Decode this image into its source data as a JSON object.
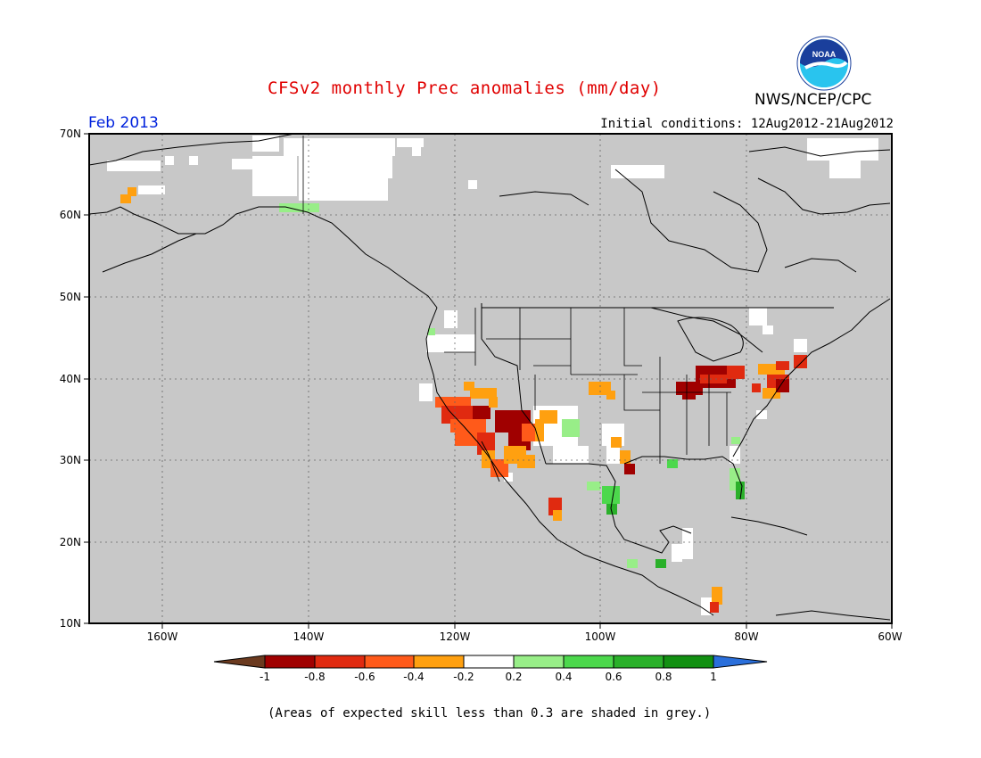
{
  "title": "CFSv2 monthly Prec anomalies (mm/day)",
  "agency": "NWS/NCEP/CPC",
  "logo": {
    "icon": "noaa-logo",
    "text": "NOAA"
  },
  "target_month": "Feb 2013",
  "initial_conditions": "Initial conditions: 12Aug2012-21Aug2012",
  "footnote": "(Areas of expected skill less than 0.3 are shaded in grey.)",
  "colors": {
    "skill_mask": "#c8c8c8",
    "neutral": "#ffffff",
    "dry_extreme": "#6b3a1f",
    "wet_extreme": "#2a6fdb"
  },
  "map": {
    "lon_range": [
      -170,
      -60
    ],
    "lat_range": [
      10,
      70
    ],
    "lat_ticks": [
      "70N",
      "60N",
      "50N",
      "40N",
      "30N",
      "20N",
      "10N"
    ],
    "lon_ticks": [
      "160W",
      "140W",
      "120W",
      "100W",
      "80W",
      "60W"
    ],
    "gridlines": "dotted"
  },
  "colorbar": {
    "labels": [
      "-1",
      "-0.8",
      "-0.6",
      "-0.4",
      "-0.2",
      "0.2",
      "0.4",
      "0.6",
      "0.8",
      "1"
    ],
    "colors": [
      "#a00000",
      "#e02a10",
      "#ff5a1a",
      "#ffa010",
      "#ffffff",
      "#98ee88",
      "#4cd84c",
      "#2ab02a",
      "#129012"
    ]
  }
}
